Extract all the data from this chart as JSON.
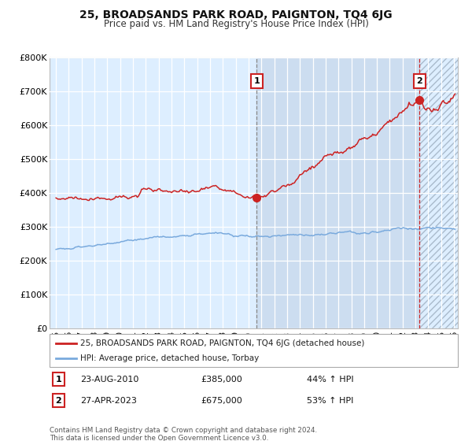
{
  "title": "25, BROADSANDS PARK ROAD, PAIGNTON, TQ4 6JG",
  "subtitle": "Price paid vs. HM Land Registry's House Price Index (HPI)",
  "ylim": [
    0,
    800000
  ],
  "yticks": [
    0,
    100000,
    200000,
    300000,
    400000,
    500000,
    600000,
    700000,
    800000
  ],
  "ytick_labels": [
    "£0",
    "£100K",
    "£200K",
    "£300K",
    "£400K",
    "£500K",
    "£600K",
    "£700K",
    "£800K"
  ],
  "xstart_year": 1995,
  "xend_year": 2026,
  "xtick_years": [
    1995,
    1996,
    1997,
    1998,
    1999,
    2000,
    2001,
    2002,
    2003,
    2004,
    2005,
    2006,
    2007,
    2008,
    2009,
    2010,
    2011,
    2012,
    2013,
    2014,
    2015,
    2016,
    2017,
    2018,
    2019,
    2020,
    2021,
    2022,
    2023,
    2024,
    2025,
    2026
  ],
  "hpi_color": "#7aaadd",
  "price_color": "#cc2222",
  "bg_color": "#ffffff",
  "plot_bg_color": "#ddeeff",
  "grid_color": "#ffffff",
  "shaded_color": "#ccddf0",
  "marker1_x": 2010.64,
  "marker1_y": 385000,
  "marker2_x": 2023.32,
  "marker2_y": 675000,
  "legend_line1": "25, BROADSANDS PARK ROAD, PAIGNTON, TQ4 6JG (detached house)",
  "legend_line2": "HPI: Average price, detached house, Torbay",
  "note1_label": "1",
  "note1_date": "23-AUG-2010",
  "note1_price": "£385,000",
  "note1_pct": "44% ↑ HPI",
  "note2_label": "2",
  "note2_date": "27-APR-2023",
  "note2_price": "£675,000",
  "note2_pct": "53% ↑ HPI",
  "footer": "Contains HM Land Registry data © Crown copyright and database right 2024.\nThis data is licensed under the Open Government Licence v3.0."
}
